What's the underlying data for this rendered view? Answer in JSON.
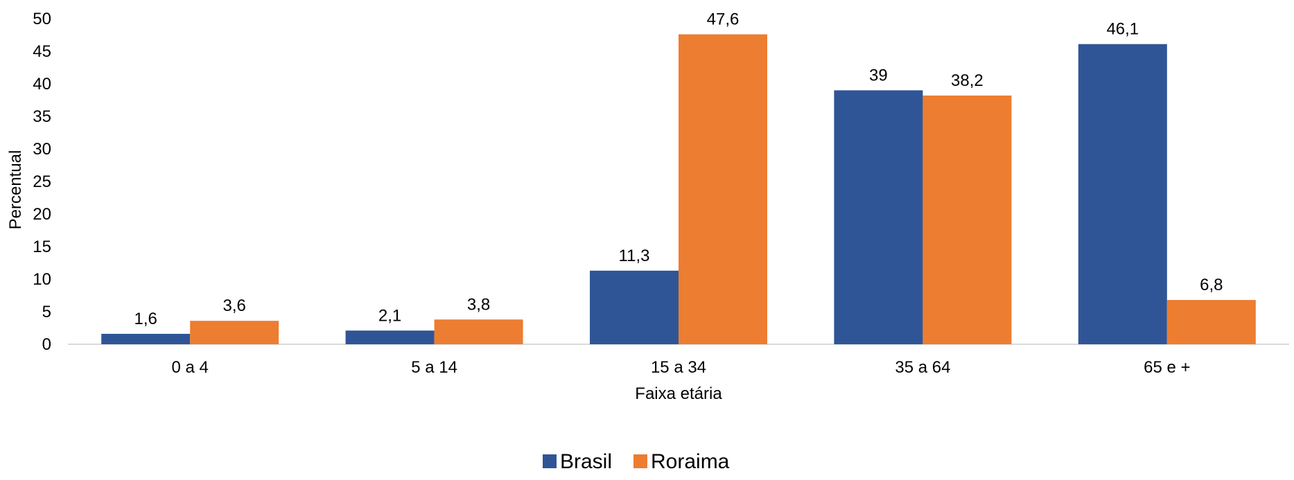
{
  "chart_data": {
    "type": "bar",
    "title": "",
    "xlabel": "Faixa etária",
    "ylabel": "Percentual",
    "categories": [
      "0 a 4",
      "5 a 14",
      "15 a 34",
      "35 a 64",
      "65 e +"
    ],
    "series": [
      {
        "name": "Brasil",
        "color": "#2F5597",
        "values": [
          1.6,
          2.1,
          11.3,
          39,
          46.1
        ],
        "labels": [
          "1,6",
          "2,1",
          "11,3",
          "39",
          "46,1"
        ]
      },
      {
        "name": "Roraima",
        "color": "#ED7D31",
        "values": [
          3.6,
          3.8,
          47.6,
          38.2,
          6.8
        ],
        "labels": [
          "3,6",
          "3,8",
          "47,6",
          "38,2",
          "6,8"
        ]
      }
    ],
    "ylim": [
      0,
      50
    ],
    "yticks": [
      0,
      5,
      10,
      15,
      20,
      25,
      30,
      35,
      40,
      45,
      50
    ],
    "grid": false,
    "legend_position": "bottom"
  }
}
